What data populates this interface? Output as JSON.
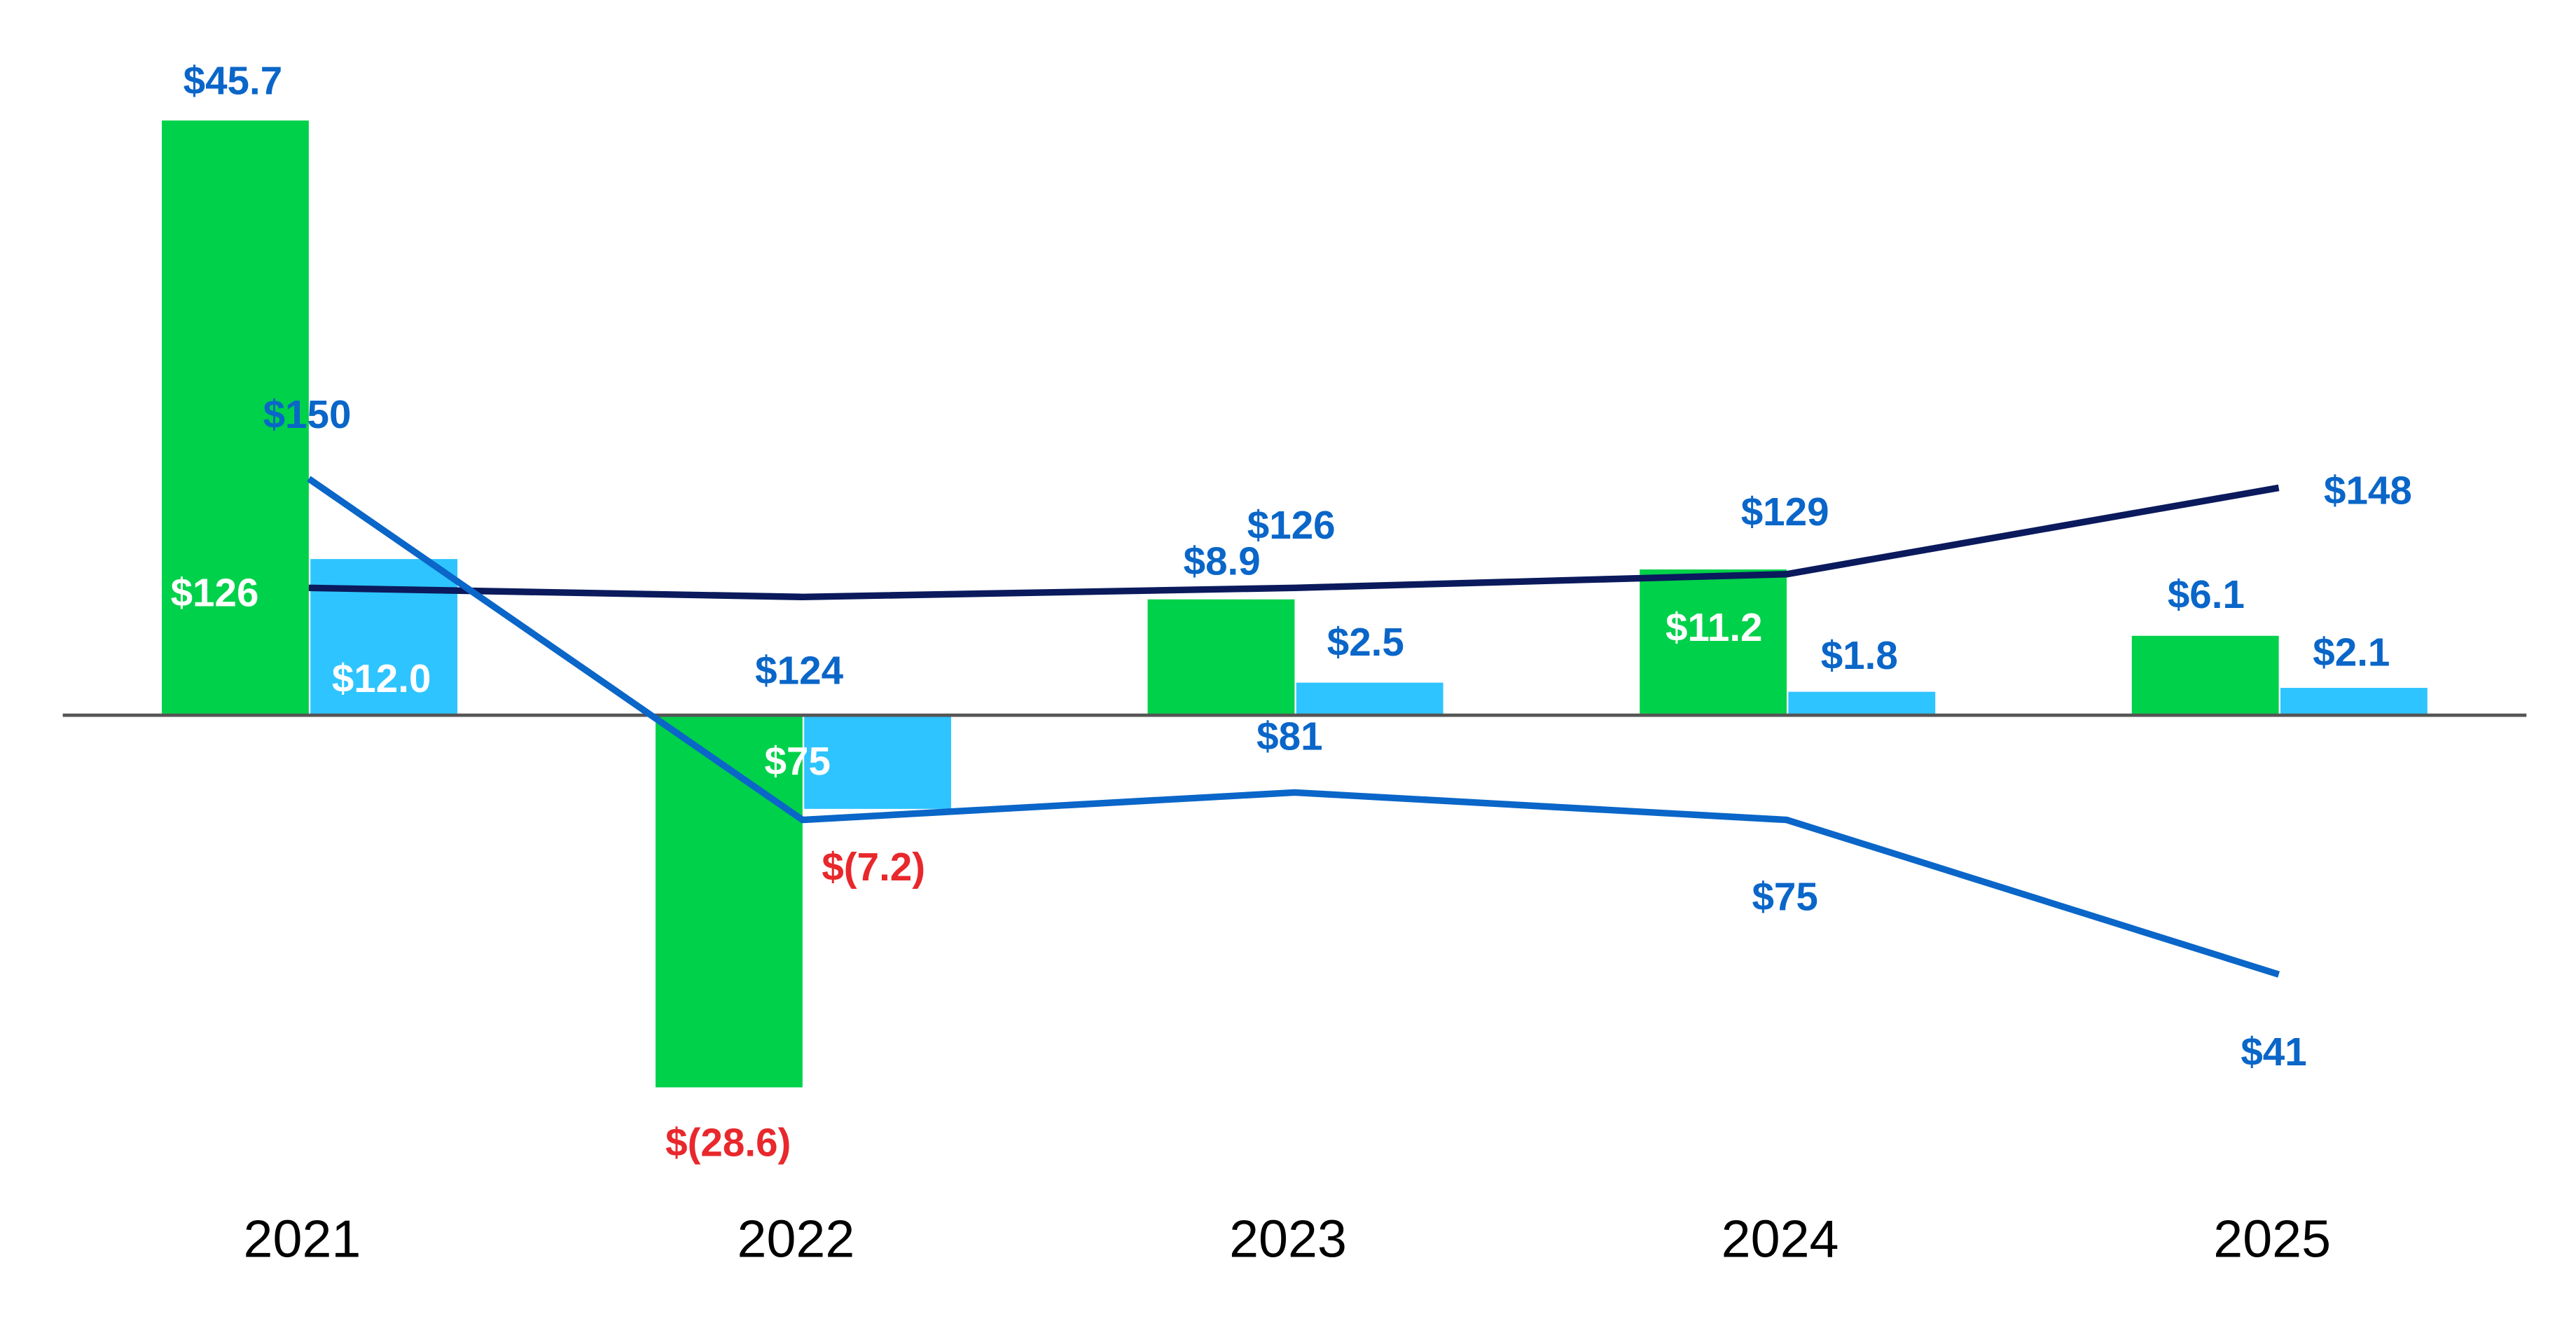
{
  "chart_data": {
    "type": "bar",
    "categories": [
      "2021",
      "2022",
      "2023",
      "2024",
      "2025"
    ],
    "bar_series": [
      {
        "values": [
          45.7,
          -28.6,
          8.9,
          11.2,
          6.1
        ],
        "labels": [
          "$45.7",
          "$(28.6)",
          "$8.9",
          "$11.2",
          "$6.1"
        ],
        "color": "#00D14A"
      },
      {
        "values": [
          12.0,
          -7.2,
          2.5,
          1.8,
          2.1
        ],
        "labels": [
          "$12.0",
          "$(7.2)",
          "$2.5",
          "$1.8",
          "$2.1"
        ],
        "color": "#2EC4FF"
      }
    ],
    "line_series": [
      {
        "values": [
          126,
          124,
          126,
          129,
          148
        ],
        "labels": [
          "$126",
          "$124",
          "$126",
          "$129",
          "$148"
        ],
        "color": "#0A1A5C",
        "axis": "secondary"
      },
      {
        "values": [
          150,
          75,
          81,
          75,
          41
        ],
        "labels": [
          "$150",
          "$75",
          "$81",
          "$75",
          "$41"
        ],
        "color": "#0A66C8",
        "axis": "secondary"
      }
    ],
    "label_colors": {
      "positive": "#0A66C8",
      "negative": "#E8282C",
      "inside": "#FFFFFF"
    },
    "baseline_color": "#555555",
    "grid": false,
    "legend": "none",
    "title": "",
    "xlabel": "",
    "ylabel": ""
  }
}
